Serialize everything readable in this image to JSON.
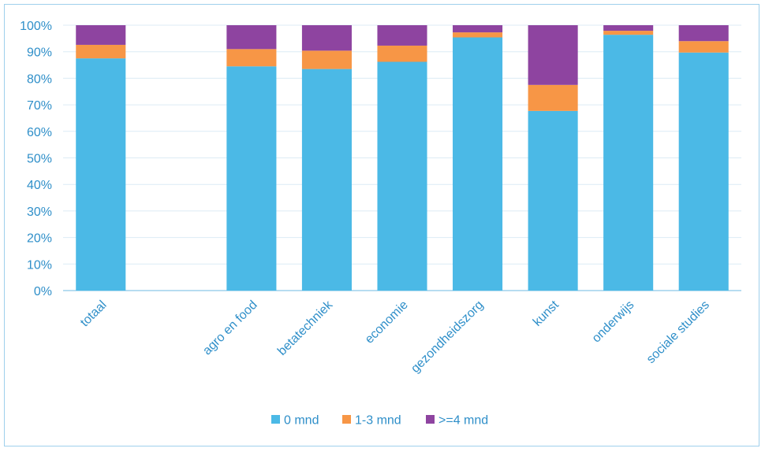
{
  "chart_data": {
    "type": "bar",
    "stacked": true,
    "percent": true,
    "categories": [
      "totaal",
      "",
      "agro en food",
      "betatechniek",
      "economie",
      "gezondheidszorg",
      "kunst",
      "onderwijs",
      "sociale studies"
    ],
    "series": [
      {
        "name": "0 mnd",
        "color": "#4bb9e6",
        "values": [
          87.5,
          null,
          84.5,
          83.5,
          86.2,
          95.4,
          67.7,
          96.4,
          89.7
        ]
      },
      {
        "name": "1-3 mnd",
        "color": "#f79646",
        "values": [
          5.1,
          null,
          6.5,
          6.9,
          6.1,
          1.9,
          9.8,
          1.5,
          4.3
        ]
      },
      {
        "name": ">=4 mnd",
        "color": "#8e44a0",
        "values": [
          7.4,
          null,
          9.0,
          9.6,
          7.7,
          2.7,
          22.5,
          2.1,
          6.0
        ]
      }
    ],
    "yticks": [
      "0%",
      "10%",
      "20%",
      "30%",
      "40%",
      "50%",
      "60%",
      "70%",
      "80%",
      "90%",
      "100%"
    ],
    "ylim": [
      0,
      100
    ],
    "grid": true,
    "legend_position": "bottom"
  }
}
